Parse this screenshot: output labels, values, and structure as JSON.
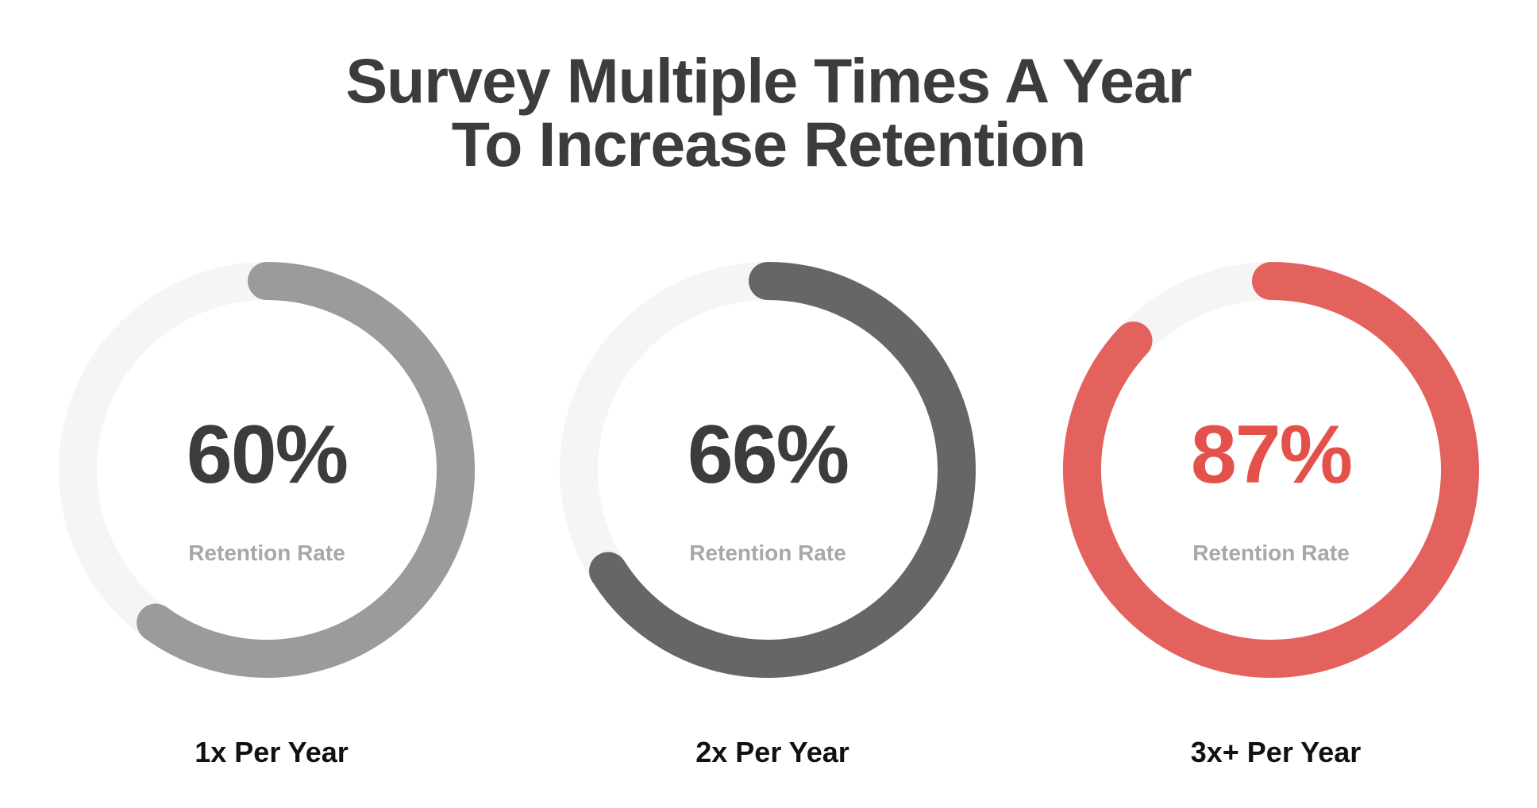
{
  "title": {
    "line1": "Survey Multiple Times A Year",
    "line2": "To Increase Retention"
  },
  "chart_data": {
    "type": "donut",
    "title": "Survey Multiple Times A Year To Increase Retention",
    "value_label": "Retention Rate",
    "unit": "%",
    "series": [
      {
        "category": "1x Per Year",
        "value": 60,
        "display": "60%",
        "color": "#9b9b9b",
        "value_color": "#3c3c3c"
      },
      {
        "category": "2x Per Year",
        "value": 66,
        "display": "66%",
        "color": "#666666",
        "value_color": "#3c3c3c"
      },
      {
        "category": "3x+ Per Year",
        "value": 87,
        "display": "87%",
        "color": "#e4625d",
        "value_color": "#e4514b"
      }
    ],
    "track_color": "#f4f5f4",
    "sublabel_color": "#a8a8a8",
    "category_color": "#111111"
  }
}
